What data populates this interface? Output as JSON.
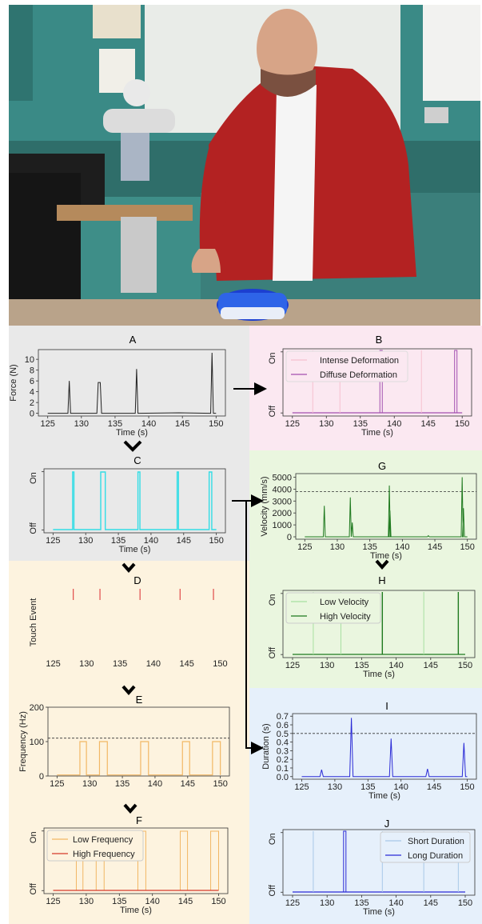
{
  "photo": {
    "description_icon": "person-reaching-toward-robot-photo"
  },
  "colors": {
    "bg_left_gray": "#e9e9e9",
    "bg_left_orange": "#fdf3df",
    "bg_pink": "#fbe8f1",
    "bg_green": "#eaf6df",
    "bg_blue": "#e6f0fb",
    "force": "#222222",
    "touch_cyan": "#33dde6",
    "touch_event": "#e04a4a",
    "freq": "#f2b765",
    "freq_high": "#d63a2a",
    "pink_light": "#f6c0cf",
    "pink_dark": "#a24fb0",
    "vel": "#1f7a1f",
    "vel_light": "#a8e0a0",
    "dur": "#2a2ad6",
    "dur_light": "#a8c8e8"
  },
  "panels": {
    "A": {
      "label": "A",
      "ylabel": "Force (N)",
      "xlabel": "Time (s)",
      "xticks": [
        "125",
        "130",
        "135",
        "140",
        "145",
        "150"
      ],
      "yticks": [
        "0",
        "2",
        "4",
        "6",
        "8",
        "10"
      ]
    },
    "B": {
      "label": "B",
      "xlabel": "Time (s)",
      "xticks": [
        "125",
        "130",
        "135",
        "140",
        "145",
        "150"
      ],
      "yticks": [
        "Off",
        "On"
      ],
      "legend": [
        "Intense Deformation",
        "Diffuse Deformation"
      ]
    },
    "C": {
      "label": "C",
      "xlabel": "Time (s)",
      "xticks": [
        "125",
        "130",
        "135",
        "140",
        "145",
        "150"
      ],
      "yticks": [
        "Off",
        "On"
      ]
    },
    "D": {
      "label": "D",
      "ylabel": "Touch Event",
      "xticks": [
        "125",
        "130",
        "135",
        "140",
        "145",
        "150"
      ]
    },
    "E": {
      "label": "E",
      "ylabel": "Frequency (Hz)",
      "xticks": [
        "125",
        "130",
        "135",
        "140",
        "145",
        "150"
      ],
      "yticks": [
        "0",
        "100",
        "200"
      ]
    },
    "F": {
      "label": "F",
      "xlabel": "Time (s)",
      "xticks": [
        "125",
        "130",
        "135",
        "140",
        "145",
        "150"
      ],
      "yticks": [
        "Off",
        "On"
      ],
      "legend": [
        "Low Frequency",
        "High Frequency"
      ]
    },
    "G": {
      "label": "G",
      "ylabel": "Velocity (mm/s)",
      "xlabel": "Time (s)",
      "xticks": [
        "125",
        "130",
        "135",
        "140",
        "145",
        "150"
      ],
      "yticks": [
        "0",
        "1000",
        "2000",
        "3000",
        "4000",
        "5000"
      ]
    },
    "H": {
      "label": "H",
      "xlabel": "Time (s)",
      "xticks": [
        "125",
        "130",
        "135",
        "140",
        "145",
        "150"
      ],
      "yticks": [
        "Off",
        "On"
      ],
      "legend": [
        "Low Velocity",
        "High Velocity"
      ]
    },
    "I": {
      "label": "I",
      "ylabel": "Duration (s)",
      "xlabel": "Time (s)",
      "xticks": [
        "125",
        "130",
        "135",
        "140",
        "145",
        "150"
      ],
      "yticks": [
        "0.0",
        "0.1",
        "0.2",
        "0.3",
        "0.4",
        "0.5",
        "0.6",
        "0.7"
      ]
    },
    "J": {
      "label": "J",
      "xlabel": "Time (s)",
      "xticks": [
        "125",
        "130",
        "135",
        "140",
        "145",
        "150"
      ],
      "yticks": [
        "Off",
        "On"
      ],
      "legend": [
        "Short Duration",
        "Long Duration"
      ]
    }
  },
  "chart_data": [
    {
      "id": "A",
      "type": "line",
      "xlim": [
        125,
        150
      ],
      "ylim": [
        0,
        11.5
      ],
      "x": [
        125,
        128,
        128.2,
        128.4,
        132.3,
        132.5,
        132.8,
        133,
        138,
        138.2,
        138.4,
        144.5,
        149.2,
        149.4,
        149.6,
        150
      ],
      "y": [
        0,
        0,
        6,
        0,
        0,
        5.7,
        5.7,
        0,
        0,
        8.2,
        0,
        0.1,
        0,
        11.2,
        0,
        0
      ]
    },
    {
      "id": "C",
      "type": "line",
      "xlim": [
        125,
        150
      ],
      "ylim": [
        0,
        1
      ],
      "pulses": [
        [
          128,
          128.2
        ],
        [
          132.3,
          133
        ],
        [
          138,
          138.3
        ],
        [
          144,
          144.2
        ],
        [
          148.9,
          149.3
        ]
      ]
    },
    {
      "id": "D",
      "type": "scatter",
      "xlim": [
        125,
        150
      ],
      "events": [
        128,
        132,
        138,
        144,
        149
      ]
    },
    {
      "id": "E",
      "type": "line",
      "xlim": [
        125,
        150
      ],
      "ylim": [
        0,
        200
      ],
      "threshold": 110,
      "pulses": [
        [
          128.5,
          129.5
        ],
        [
          131.5,
          132.7
        ],
        [
          137.8,
          139
        ],
        [
          144.2,
          145.3
        ],
        [
          148.8,
          150
        ]
      ],
      "level": 100
    },
    {
      "id": "G",
      "type": "line",
      "xlim": [
        125,
        150
      ],
      "ylim": [
        0,
        5200
      ],
      "threshold": 3800,
      "spikes": [
        [
          128,
          2600
        ],
        [
          132,
          3300
        ],
        [
          132.3,
          1200
        ],
        [
          138,
          4300
        ],
        [
          138.1,
          2200
        ],
        [
          144,
          100
        ],
        [
          149.2,
          5000
        ],
        [
          149.4,
          2400
        ]
      ]
    },
    {
      "id": "I",
      "type": "line",
      "xlim": [
        125,
        150
      ],
      "ylim": [
        0,
        0.72
      ],
      "threshold": 0.5,
      "spikes": [
        [
          128,
          0.08
        ],
        [
          132.5,
          0.68
        ],
        [
          138.5,
          0.44
        ],
        [
          144,
          0.09
        ],
        [
          149.5,
          0.39
        ]
      ]
    }
  ]
}
